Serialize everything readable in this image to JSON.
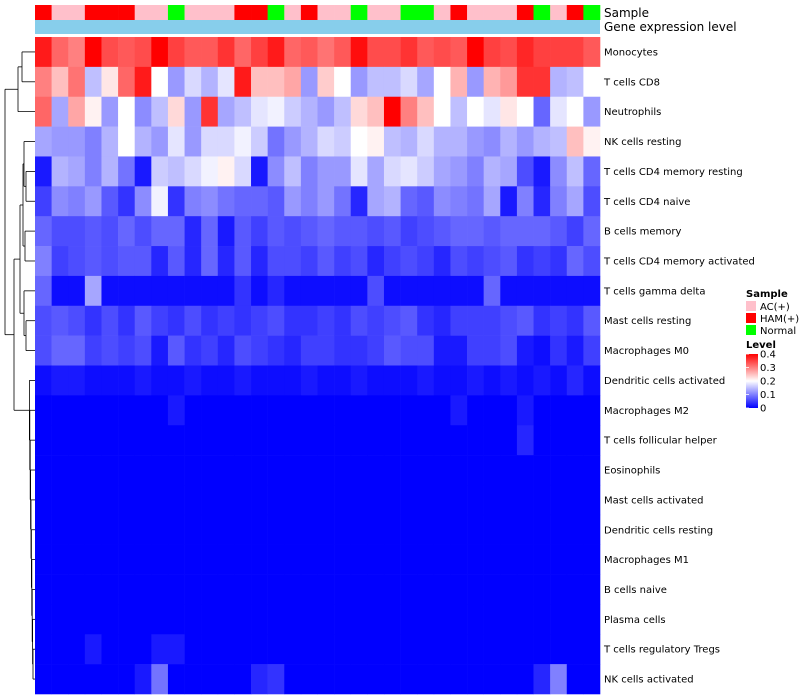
{
  "chart_data": {
    "type": "heatmap",
    "title": "",
    "annotation_labels": [
      "Sample",
      "Gene expression level"
    ],
    "sample_groups": [
      "HAM(+)",
      "AC(+)",
      "AC(+)",
      "HAM(+)",
      "HAM(+)",
      "HAM(+)",
      "AC(+)",
      "AC(+)",
      "Normal",
      "AC(+)",
      "AC(+)",
      "AC(+)",
      "HAM(+)",
      "HAM(+)",
      "Normal",
      "AC(+)",
      "HAM(+)",
      "AC(+)",
      "AC(+)",
      "Normal",
      "AC(+)",
      "AC(+)",
      "Normal",
      "Normal",
      "AC(+)",
      "HAM(+)",
      "AC(+)",
      "AC(+)",
      "AC(+)",
      "HAM(+)",
      "Normal",
      "AC(+)",
      "HAM(+)",
      "Normal"
    ],
    "row_labels": [
      "Monocytes",
      "T cells CD8",
      "Neutrophils",
      "NK cells resting",
      "T cells CD4 memory resting",
      "T cells CD4 naive",
      "B cells memory",
      "T cells CD4 memory activated",
      "T cells gamma delta",
      "Mast cells resting",
      "Macrophages M0",
      "Dendritic cells activated",
      "Macrophages M2",
      "T cells follicular helper",
      "Eosinophils",
      "Mast cells activated",
      "Dendritic cells resting",
      "Macrophages M1",
      "B cells naive",
      "Plasma cells",
      "T cells regulatory  Tregs",
      "NK cells activated"
    ],
    "values": [
      [
        0.38,
        0.32,
        0.3,
        0.4,
        0.34,
        0.33,
        0.34,
        0.4,
        0.35,
        0.33,
        0.33,
        0.36,
        0.32,
        0.35,
        0.38,
        0.32,
        0.33,
        0.31,
        0.33,
        0.39,
        0.34,
        0.34,
        0.36,
        0.33,
        0.34,
        0.33,
        0.41,
        0.35,
        0.34,
        0.37,
        0.35,
        0.35,
        0.35,
        0.33
      ],
      [
        0.3,
        0.25,
        0.31,
        0.15,
        0.22,
        0.32,
        0.38,
        0.2,
        0.12,
        0.17,
        0.14,
        0.18,
        0.38,
        0.25,
        0.25,
        0.27,
        0.12,
        0.24,
        0.2,
        0.12,
        0.15,
        0.15,
        0.17,
        0.13,
        0.2,
        0.26,
        0.12,
        0.26,
        0.28,
        0.36,
        0.36,
        0.14,
        0.15,
        0.2
      ],
      [
        0.32,
        0.13,
        0.27,
        0.21,
        0.12,
        0.2,
        0.11,
        0.15,
        0.23,
        0.12,
        0.36,
        0.13,
        0.15,
        0.18,
        0.19,
        0.16,
        0.14,
        0.12,
        0.15,
        0.23,
        0.25,
        0.4,
        0.3,
        0.25,
        0.2,
        0.15,
        0.2,
        0.18,
        0.22,
        0.2,
        0.08,
        0.18,
        0.2,
        0.12
      ],
      [
        0.13,
        0.12,
        0.12,
        0.1,
        0.14,
        0.2,
        0.14,
        0.12,
        0.18,
        0.12,
        0.17,
        0.17,
        0.19,
        0.16,
        0.09,
        0.12,
        0.14,
        0.17,
        0.16,
        0.2,
        0.21,
        0.15,
        0.14,
        0.17,
        0.14,
        0.14,
        0.12,
        0.11,
        0.14,
        0.12,
        0.14,
        0.15,
        0.25,
        0.21
      ],
      [
        0.02,
        0.14,
        0.13,
        0.1,
        0.14,
        0.09,
        0.02,
        0.16,
        0.15,
        0.17,
        0.19,
        0.21,
        0.17,
        0.02,
        0.11,
        0.15,
        0.1,
        0.12,
        0.12,
        0.18,
        0.13,
        0.17,
        0.18,
        0.16,
        0.13,
        0.12,
        0.1,
        0.14,
        0.13,
        0.06,
        0.02,
        0.11,
        0.15,
        0.08
      ],
      [
        0.05,
        0.11,
        0.1,
        0.12,
        0.07,
        0.04,
        0.11,
        0.19,
        0.04,
        0.1,
        0.11,
        0.09,
        0.08,
        0.08,
        0.07,
        0.12,
        0.1,
        0.12,
        0.09,
        0.03,
        0.13,
        0.14,
        0.08,
        0.07,
        0.11,
        0.1,
        0.09,
        0.13,
        0.02,
        0.1,
        0.03,
        0.1,
        0.13,
        0.06
      ],
      [
        0.08,
        0.06,
        0.06,
        0.07,
        0.06,
        0.08,
        0.06,
        0.08,
        0.08,
        0.03,
        0.08,
        0.02,
        0.07,
        0.05,
        0.07,
        0.06,
        0.07,
        0.08,
        0.07,
        0.07,
        0.06,
        0.07,
        0.05,
        0.06,
        0.07,
        0.08,
        0.08,
        0.07,
        0.08,
        0.08,
        0.08,
        0.07,
        0.05,
        0.08
      ],
      [
        0.1,
        0.05,
        0.06,
        0.07,
        0.06,
        0.07,
        0.07,
        0.03,
        0.07,
        0.03,
        0.08,
        0.03,
        0.07,
        0.03,
        0.06,
        0.06,
        0.05,
        0.07,
        0.05,
        0.06,
        0.03,
        0.05,
        0.06,
        0.05,
        0.03,
        0.06,
        0.05,
        0.06,
        0.07,
        0.04,
        0.05,
        0.04,
        0.08,
        0.06
      ],
      [
        0.08,
        0.01,
        0.01,
        0.13,
        0.01,
        0.01,
        0.01,
        0.01,
        0.01,
        0.01,
        0.01,
        0.01,
        0.04,
        0.01,
        0.03,
        0.01,
        0.01,
        0.01,
        0.01,
        0.01,
        0.06,
        0.01,
        0.01,
        0.01,
        0.01,
        0.01,
        0.01,
        0.08,
        0.01,
        0.01,
        0.01,
        0.01,
        0.01,
        0.01
      ],
      [
        0.06,
        0.07,
        0.06,
        0.04,
        0.06,
        0.04,
        0.07,
        0.05,
        0.04,
        0.06,
        0.04,
        0.05,
        0.04,
        0.05,
        0.06,
        0.04,
        0.04,
        0.05,
        0.04,
        0.06,
        0.05,
        0.06,
        0.07,
        0.04,
        0.03,
        0.05,
        0.05,
        0.05,
        0.06,
        0.07,
        0.04,
        0.05,
        0.04,
        0.07
      ],
      [
        0.06,
        0.08,
        0.08,
        0.05,
        0.06,
        0.05,
        0.06,
        0.02,
        0.07,
        0.04,
        0.05,
        0.03,
        0.06,
        0.05,
        0.04,
        0.03,
        0.05,
        0.05,
        0.04,
        0.04,
        0.05,
        0.07,
        0.06,
        0.06,
        0.02,
        0.02,
        0.05,
        0.05,
        0.06,
        0.02,
        0.01,
        0.04,
        0.02,
        0.05
      ],
      [
        0.01,
        0.02,
        0.02,
        0.01,
        0.01,
        0.01,
        0.02,
        0.01,
        0.01,
        0.02,
        0.01,
        0.01,
        0.02,
        0.01,
        0.01,
        0.01,
        0.02,
        0.01,
        0.01,
        0.02,
        0.01,
        0.01,
        0.01,
        0.02,
        0.01,
        0.01,
        0.02,
        0.01,
        0.02,
        0.01,
        0.02,
        0.01,
        0.03,
        0.01
      ],
      [
        0.0,
        0.0,
        0.0,
        0.0,
        0.0,
        0.0,
        0.0,
        0.0,
        0.02,
        0.0,
        0.0,
        0.0,
        0.0,
        0.0,
        0.0,
        0.0,
        0.0,
        0.0,
        0.0,
        0.0,
        0.0,
        0.0,
        0.0,
        0.0,
        0.0,
        0.02,
        0.0,
        0.0,
        0.0,
        0.02,
        0.0,
        0.0,
        0.0,
        0.0
      ],
      [
        0.0,
        0.0,
        0.0,
        0.0,
        0.0,
        0.0,
        0.0,
        0.0,
        0.0,
        0.0,
        0.0,
        0.0,
        0.0,
        0.0,
        0.0,
        0.0,
        0.0,
        0.0,
        0.0,
        0.0,
        0.0,
        0.0,
        0.0,
        0.0,
        0.0,
        0.0,
        0.0,
        0.0,
        0.0,
        0.03,
        0.0,
        0.0,
        0.0,
        0.0
      ],
      [
        0.0,
        0.0,
        0.0,
        0.0,
        0.0,
        0.0,
        0.0,
        0.0,
        0.0,
        0.0,
        0.0,
        0.0,
        0.0,
        0.0,
        0.0,
        0.0,
        0.0,
        0.0,
        0.0,
        0.0,
        0.0,
        0.0,
        0.0,
        0.0,
        0.0,
        0.0,
        0.0,
        0.0,
        0.0,
        0.0,
        0.0,
        0.0,
        0.0,
        0.0
      ],
      [
        0.0,
        0.0,
        0.0,
        0.0,
        0.0,
        0.0,
        0.0,
        0.0,
        0.0,
        0.0,
        0.0,
        0.0,
        0.0,
        0.0,
        0.0,
        0.0,
        0.0,
        0.0,
        0.0,
        0.0,
        0.0,
        0.0,
        0.0,
        0.0,
        0.0,
        0.0,
        0.0,
        0.0,
        0.0,
        0.0,
        0.0,
        0.0,
        0.0,
        0.0
      ],
      [
        0.0,
        0.0,
        0.0,
        0.0,
        0.0,
        0.0,
        0.0,
        0.0,
        0.0,
        0.0,
        0.0,
        0.0,
        0.0,
        0.0,
        0.0,
        0.0,
        0.0,
        0.0,
        0.0,
        0.0,
        0.0,
        0.0,
        0.0,
        0.0,
        0.0,
        0.0,
        0.0,
        0.0,
        0.0,
        0.0,
        0.0,
        0.0,
        0.0,
        0.0
      ],
      [
        0.0,
        0.0,
        0.0,
        0.0,
        0.0,
        0.0,
        0.0,
        0.0,
        0.0,
        0.0,
        0.0,
        0.0,
        0.0,
        0.0,
        0.0,
        0.0,
        0.0,
        0.0,
        0.0,
        0.0,
        0.0,
        0.0,
        0.0,
        0.0,
        0.0,
        0.0,
        0.0,
        0.0,
        0.0,
        0.0,
        0.0,
        0.0,
        0.0,
        0.0
      ],
      [
        0.0,
        0.0,
        0.0,
        0.0,
        0.0,
        0.0,
        0.0,
        0.0,
        0.0,
        0.0,
        0.0,
        0.0,
        0.0,
        0.0,
        0.0,
        0.0,
        0.0,
        0.0,
        0.0,
        0.0,
        0.0,
        0.0,
        0.0,
        0.0,
        0.0,
        0.0,
        0.0,
        0.0,
        0.0,
        0.0,
        0.0,
        0.0,
        0.0,
        0.0
      ],
      [
        0.0,
        0.0,
        0.0,
        0.0,
        0.0,
        0.0,
        0.0,
        0.0,
        0.0,
        0.0,
        0.0,
        0.0,
        0.0,
        0.0,
        0.0,
        0.0,
        0.0,
        0.0,
        0.0,
        0.0,
        0.0,
        0.0,
        0.0,
        0.0,
        0.0,
        0.0,
        0.0,
        0.0,
        0.0,
        0.0,
        0.0,
        0.0,
        0.0,
        0.0
      ],
      [
        0.0,
        0.0,
        0.0,
        0.02,
        0.0,
        0.0,
        0.0,
        0.02,
        0.02,
        0.0,
        0.0,
        0.0,
        0.0,
        0.0,
        0.0,
        0.0,
        0.0,
        0.0,
        0.0,
        0.0,
        0.0,
        0.0,
        0.0,
        0.0,
        0.0,
        0.0,
        0.0,
        0.0,
        0.0,
        0.0,
        0.0,
        0.0,
        0.0,
        0.0
      ],
      [
        0.0,
        0.0,
        0.0,
        0.0,
        0.0,
        0.0,
        0.02,
        0.09,
        0.0,
        0.0,
        0.0,
        0.0,
        0.0,
        0.03,
        0.04,
        0.0,
        0.0,
        0.0,
        0.0,
        0.0,
        0.0,
        0.0,
        0.0,
        0.0,
        0.0,
        0.0,
        0.0,
        0.0,
        0.0,
        0.0,
        0.03,
        0.1,
        0.0,
        0.0
      ]
    ],
    "color_scale": {
      "min": 0,
      "mid": 0.2,
      "max": 0.4,
      "low_color": "#0000ff",
      "mid_color": "#ffffff",
      "high_color": "#ff0000"
    },
    "legend": {
      "sample_title": "Sample",
      "sample_items": [
        {
          "label": "AC(+)",
          "color": "#ffc0cb"
        },
        {
          "label": "HAM(+)",
          "color": "#ff0000"
        },
        {
          "label": "Normal",
          "color": "#00ff00"
        }
      ],
      "level_title": "Level",
      "level_ticks": [
        "0.4",
        "0.3",
        "0.2",
        "0.1",
        "0"
      ],
      "level_tick_values": [
        0.4,
        0.3,
        0.2,
        0.1,
        0
      ]
    },
    "expression_bar_color": "#87ceeb",
    "row_dendrogram": true,
    "row_order_note": "rows listed top to bottom"
  }
}
